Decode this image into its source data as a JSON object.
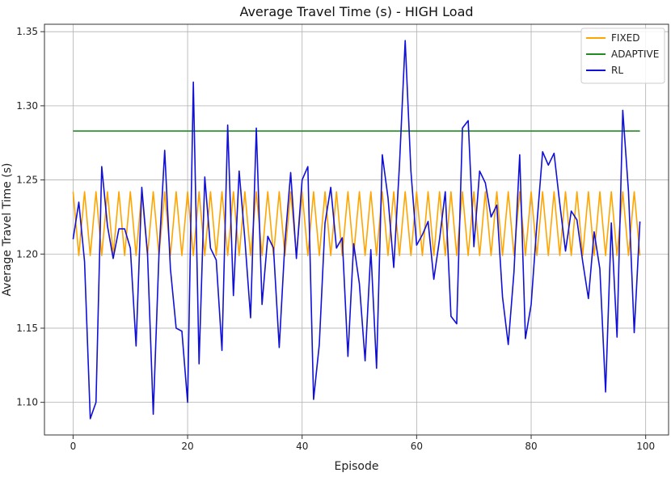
{
  "chart_data": {
    "type": "line",
    "title": "Average Travel Time (s) - HIGH Load",
    "xlabel": "Episode",
    "ylabel": "Average Travel Time (s)",
    "xlim": [
      -5,
      104
    ],
    "ylim": [
      1.078,
      1.355
    ],
    "xticks": [
      0,
      20,
      40,
      60,
      80,
      100
    ],
    "yticks": [
      1.1,
      1.15,
      1.2,
      1.25,
      1.3,
      1.35
    ],
    "ytick_labels": [
      "1.10",
      "1.15",
      "1.20",
      "1.25",
      "1.30",
      "1.35"
    ],
    "grid": true,
    "legend_position": "top-right",
    "x": [
      0,
      1,
      2,
      3,
      4,
      5,
      6,
      7,
      8,
      9,
      10,
      11,
      12,
      13,
      14,
      15,
      16,
      17,
      18,
      19,
      20,
      21,
      22,
      23,
      24,
      25,
      26,
      27,
      28,
      29,
      30,
      31,
      32,
      33,
      34,
      35,
      36,
      37,
      38,
      39,
      40,
      41,
      42,
      43,
      44,
      45,
      46,
      47,
      48,
      49,
      50,
      51,
      52,
      53,
      54,
      55,
      56,
      57,
      58,
      59,
      60,
      61,
      62,
      63,
      64,
      65,
      66,
      67,
      68,
      69,
      70,
      71,
      72,
      73,
      74,
      75,
      76,
      77,
      78,
      79,
      80,
      81,
      82,
      83,
      84,
      85,
      86,
      87,
      88,
      89,
      90,
      91,
      92,
      93,
      94,
      95,
      96,
      97,
      98,
      99
    ],
    "series": [
      {
        "name": "FIXED",
        "color": "#ffa500",
        "values": [
          1.242,
          1.199,
          1.242,
          1.199,
          1.242,
          1.199,
          1.242,
          1.199,
          1.242,
          1.199,
          1.242,
          1.199,
          1.242,
          1.199,
          1.242,
          1.199,
          1.242,
          1.199,
          1.242,
          1.199,
          1.242,
          1.199,
          1.242,
          1.199,
          1.242,
          1.199,
          1.242,
          1.199,
          1.242,
          1.199,
          1.242,
          1.199,
          1.242,
          1.199,
          1.242,
          1.199,
          1.242,
          1.199,
          1.242,
          1.199,
          1.242,
          1.199,
          1.242,
          1.199,
          1.242,
          1.199,
          1.242,
          1.199,
          1.242,
          1.199,
          1.242,
          1.199,
          1.242,
          1.199,
          1.242,
          1.199,
          1.242,
          1.199,
          1.242,
          1.199,
          1.242,
          1.199,
          1.242,
          1.199,
          1.242,
          1.199,
          1.242,
          1.199,
          1.242,
          1.199,
          1.242,
          1.199,
          1.242,
          1.199,
          1.242,
          1.199,
          1.242,
          1.199,
          1.242,
          1.199,
          1.242,
          1.199,
          1.242,
          1.199,
          1.242,
          1.199,
          1.242,
          1.199,
          1.242,
          1.199,
          1.242,
          1.199,
          1.242,
          1.199,
          1.242,
          1.199,
          1.242,
          1.199,
          1.242,
          1.199
        ]
      },
      {
        "name": "ADAPTIVE",
        "color": "#228b22",
        "values": [
          1.283,
          1.283,
          1.283,
          1.283,
          1.283,
          1.283,
          1.283,
          1.283,
          1.283,
          1.283,
          1.283,
          1.283,
          1.283,
          1.283,
          1.283,
          1.283,
          1.283,
          1.283,
          1.283,
          1.283,
          1.283,
          1.283,
          1.283,
          1.283,
          1.283,
          1.283,
          1.283,
          1.283,
          1.283,
          1.283,
          1.283,
          1.283,
          1.283,
          1.283,
          1.283,
          1.283,
          1.283,
          1.283,
          1.283,
          1.283,
          1.283,
          1.283,
          1.283,
          1.283,
          1.283,
          1.283,
          1.283,
          1.283,
          1.283,
          1.283,
          1.283,
          1.283,
          1.283,
          1.283,
          1.283,
          1.283,
          1.283,
          1.283,
          1.283,
          1.283,
          1.283,
          1.283,
          1.283,
          1.283,
          1.283,
          1.283,
          1.283,
          1.283,
          1.283,
          1.283,
          1.283,
          1.283,
          1.283,
          1.283,
          1.283,
          1.283,
          1.283,
          1.283,
          1.283,
          1.283,
          1.283,
          1.283,
          1.283,
          1.283,
          1.283,
          1.283,
          1.283,
          1.283,
          1.283,
          1.283,
          1.283,
          1.283,
          1.283,
          1.283,
          1.283,
          1.283,
          1.283,
          1.283,
          1.283,
          1.283
        ]
      },
      {
        "name": "RL",
        "color": "#1010d8",
        "values": [
          1.21,
          1.235,
          1.195,
          1.089,
          1.1,
          1.259,
          1.219,
          1.197,
          1.217,
          1.217,
          1.204,
          1.138,
          1.245,
          1.2,
          1.092,
          1.2,
          1.27,
          1.19,
          1.15,
          1.148,
          1.1,
          1.316,
          1.126,
          1.252,
          1.204,
          1.196,
          1.135,
          1.287,
          1.172,
          1.256,
          1.21,
          1.157,
          1.285,
          1.166,
          1.212,
          1.204,
          1.137,
          1.208,
          1.255,
          1.197,
          1.25,
          1.259,
          1.102,
          1.139,
          1.221,
          1.245,
          1.204,
          1.211,
          1.131,
          1.207,
          1.18,
          1.128,
          1.203,
          1.123,
          1.267,
          1.238,
          1.191,
          1.26,
          1.344,
          1.256,
          1.206,
          1.213,
          1.222,
          1.183,
          1.21,
          1.242,
          1.158,
          1.153,
          1.285,
          1.29,
          1.205,
          1.256,
          1.248,
          1.225,
          1.233,
          1.171,
          1.139,
          1.188,
          1.267,
          1.143,
          1.166,
          1.22,
          1.269,
          1.26,
          1.268,
          1.234,
          1.202,
          1.229,
          1.223,
          1.195,
          1.17,
          1.215,
          1.19,
          1.107,
          1.221,
          1.144,
          1.297,
          1.242,
          1.147,
          1.222
        ]
      }
    ]
  }
}
